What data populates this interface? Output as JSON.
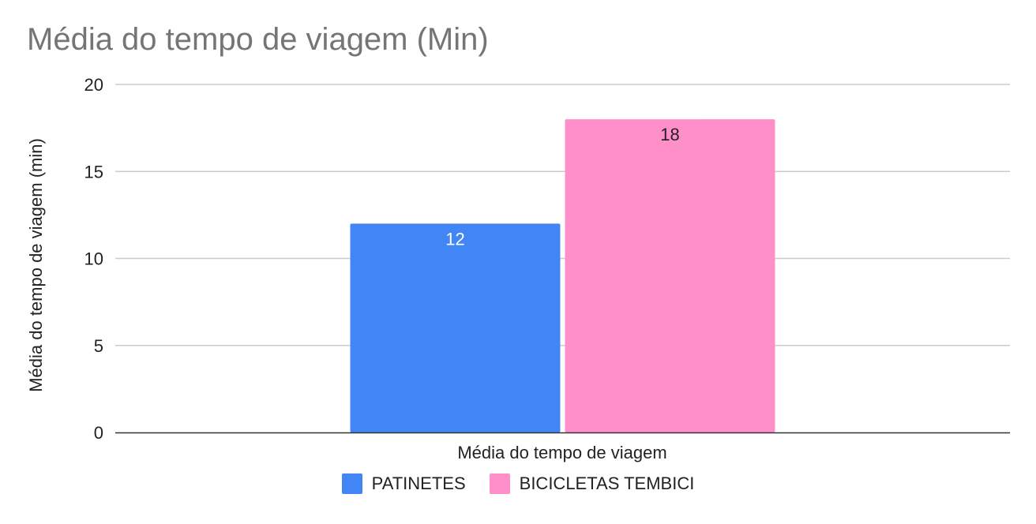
{
  "chart_data": {
    "type": "bar",
    "title": "Média do tempo de viagem (Min)",
    "xlabel": "Média do tempo de viagem",
    "ylabel": "Média do tempo de viagem (min)",
    "categories": [
      "Média do tempo de viagem"
    ],
    "series": [
      {
        "name": "PATINETES",
        "values": [
          12
        ],
        "color": "#4285f4",
        "label_color": "#ffffff"
      },
      {
        "name": "BICICLETAS TEMBICI",
        "values": [
          18
        ],
        "color": "#ff8fc8",
        "label_color": "#222222"
      }
    ],
    "ylim": [
      0,
      20
    ],
    "yticks": [
      0,
      5,
      10,
      15,
      20
    ],
    "grid": true,
    "legend_position": "bottom"
  }
}
